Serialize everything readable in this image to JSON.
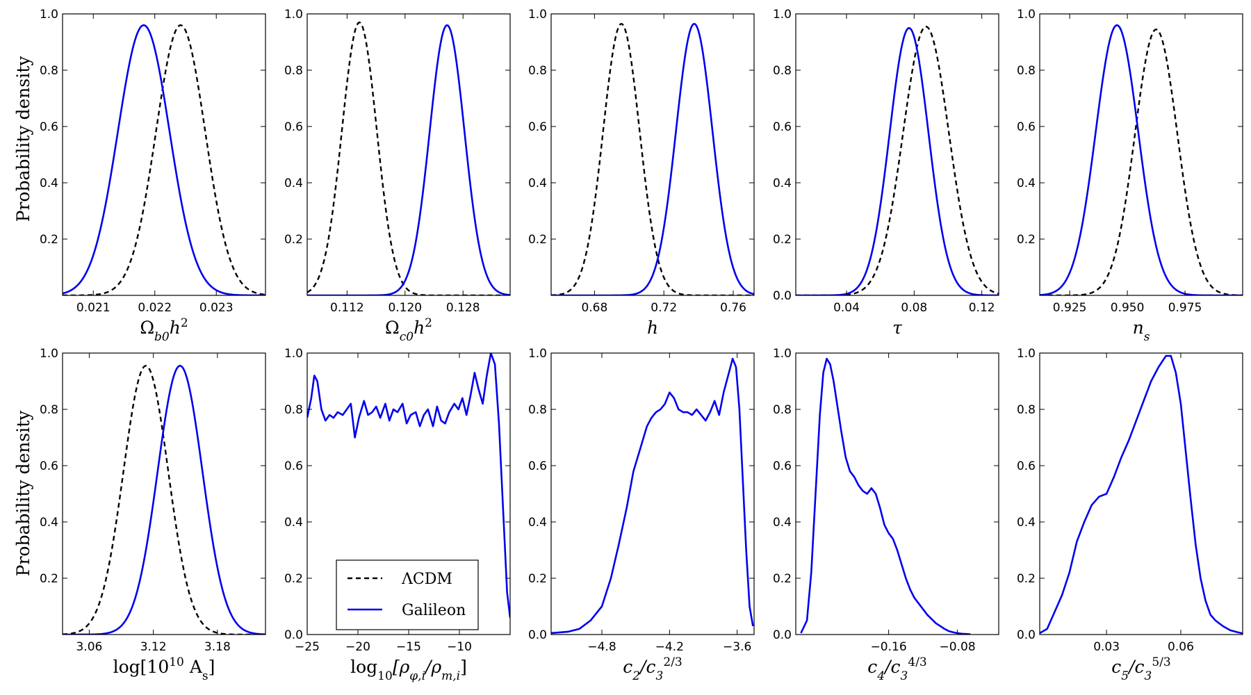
{
  "figure": {
    "ylabel": "Probability density",
    "legend": {
      "position": "lower-center of panel 7",
      "entries": [
        {
          "label": "ΛCDM",
          "style": "dashed",
          "color": "#000000"
        },
        {
          "label": "Galileon",
          "style": "solid",
          "color": "#0000ee"
        }
      ]
    },
    "colors": {
      "lcdm": "#000000",
      "galileon": "#0000ee"
    }
  },
  "chart_data": [
    {
      "type": "line",
      "id": "omega_b",
      "xlabel": "Ωb0h²",
      "xlim": [
        0.0205,
        0.0238
      ],
      "ylim": [
        0,
        1.0
      ],
      "xticks": [
        {
          "v": 0.021,
          "label": "0.021"
        },
        {
          "v": 0.022,
          "label": "0.022"
        },
        {
          "v": 0.023,
          "label": "0.023"
        }
      ],
      "yticks": [
        {
          "v": 0.2,
          "label": "0.2"
        },
        {
          "v": 0.4,
          "label": "0.4"
        },
        {
          "v": 0.6,
          "label": "0.6"
        },
        {
          "v": 0.8,
          "label": "0.8"
        },
        {
          "v": 1.0,
          "label": "1.0"
        }
      ],
      "series": [
        {
          "name": "ΛCDM",
          "style": "dashed",
          "mu": 0.02242,
          "sig": 0.0004,
          "amp": 0.96
        },
        {
          "name": "Galileon",
          "style": "solid",
          "mu": 0.02182,
          "sig": 0.00042,
          "amp": 0.96
        }
      ]
    },
    {
      "type": "line",
      "id": "omega_c",
      "xlabel": "Ωc0h²",
      "xlim": [
        0.1065,
        0.1345
      ],
      "ylim": [
        0,
        1.0
      ],
      "xticks": [
        {
          "v": 0.112,
          "label": "0.112"
        },
        {
          "v": 0.12,
          "label": "0.120"
        },
        {
          "v": 0.128,
          "label": "0.128"
        }
      ],
      "yticks": [
        {
          "v": 0.2,
          "label": "0.2"
        },
        {
          "v": 0.4,
          "label": "0.4"
        },
        {
          "v": 0.6,
          "label": "0.6"
        },
        {
          "v": 0.8,
          "label": "0.8"
        },
        {
          "v": 1.0,
          "label": "1.0"
        }
      ],
      "series": [
        {
          "name": "ΛCDM",
          "style": "dashed",
          "mu": 0.1137,
          "sig": 0.0024,
          "amp": 0.97
        },
        {
          "name": "Galileon",
          "style": "solid",
          "mu": 0.1258,
          "sig": 0.0024,
          "amp": 0.96
        }
      ]
    },
    {
      "type": "line",
      "id": "h",
      "xlabel": "h",
      "xlim": [
        0.655,
        0.772
      ],
      "ylim": [
        0,
        1.0
      ],
      "xticks": [
        {
          "v": 0.68,
          "label": "0.68"
        },
        {
          "v": 0.72,
          "label": "0.72"
        },
        {
          "v": 0.76,
          "label": "0.76"
        }
      ],
      "yticks": [
        {
          "v": 0.2,
          "label": "0.2"
        },
        {
          "v": 0.4,
          "label": "0.4"
        },
        {
          "v": 0.6,
          "label": "0.6"
        },
        {
          "v": 0.8,
          "label": "0.8"
        },
        {
          "v": 1.0,
          "label": "1.0"
        }
      ],
      "series": [
        {
          "name": "ΛCDM",
          "style": "dashed",
          "mu": 0.6955,
          "sig": 0.0105,
          "amp": 0.965
        },
        {
          "name": "Galileon",
          "style": "solid",
          "mu": 0.7375,
          "sig": 0.0105,
          "amp": 0.965
        }
      ]
    },
    {
      "type": "line",
      "id": "tau",
      "xlabel": "τ",
      "xlim": [
        0.01,
        0.13
      ],
      "ylim": [
        0,
        1.0
      ],
      "xticks": [
        {
          "v": 0.04,
          "label": "0.04"
        },
        {
          "v": 0.08,
          "label": "0.08"
        },
        {
          "v": 0.12,
          "label": "0.12"
        }
      ],
      "yticks": [
        {
          "v": 0.0,
          "label": "0.0"
        },
        {
          "v": 0.2,
          "label": "0.2"
        },
        {
          "v": 0.4,
          "label": "0.4"
        },
        {
          "v": 0.6,
          "label": "0.6"
        },
        {
          "v": 0.8,
          "label": "0.8"
        },
        {
          "v": 1.0,
          "label": "1.0"
        }
      ],
      "series": [
        {
          "name": "ΛCDM",
          "style": "dashed",
          "mu": 0.087,
          "sig": 0.0135,
          "amp": 0.955
        },
        {
          "name": "Galileon",
          "style": "solid",
          "mu": 0.077,
          "sig": 0.0115,
          "amp": 0.95
        }
      ]
    },
    {
      "type": "line",
      "id": "ns",
      "xlabel": "ns",
      "xlim": [
        0.912,
        1.0
      ],
      "ylim": [
        0,
        1.0
      ],
      "xticks": [
        {
          "v": 0.925,
          "label": "0.925"
        },
        {
          "v": 0.95,
          "label": "0.950"
        },
        {
          "v": 0.975,
          "label": "0.975"
        }
      ],
      "yticks": [
        {
          "v": 0.2,
          "label": "0.2"
        },
        {
          "v": 0.4,
          "label": "0.4"
        },
        {
          "v": 0.6,
          "label": "0.6"
        },
        {
          "v": 0.8,
          "label": "0.8"
        },
        {
          "v": 1.0,
          "label": "1.0"
        }
      ],
      "series": [
        {
          "name": "ΛCDM",
          "style": "dashed",
          "mu": 0.9625,
          "sig": 0.0092,
          "amp": 0.945
        },
        {
          "name": "Galileon",
          "style": "solid",
          "mu": 0.9455,
          "sig": 0.0092,
          "amp": 0.96
        }
      ]
    },
    {
      "type": "line",
      "id": "As",
      "xlabel": "log[10¹⁰ As]",
      "xlim": [
        3.035,
        3.225
      ],
      "ylim": [
        0,
        1.0
      ],
      "xticks": [
        {
          "v": 3.06,
          "label": "3.06"
        },
        {
          "v": 3.12,
          "label": "3.12"
        },
        {
          "v": 3.18,
          "label": "3.18"
        }
      ],
      "yticks": [
        {
          "v": 0.2,
          "label": "0.2"
        },
        {
          "v": 0.4,
          "label": "0.4"
        },
        {
          "v": 0.6,
          "label": "0.6"
        },
        {
          "v": 0.8,
          "label": "0.8"
        },
        {
          "v": 1.0,
          "label": "1.0"
        }
      ],
      "series": [
        {
          "name": "ΛCDM",
          "style": "dashed",
          "mu": 3.113,
          "sig": 0.021,
          "amp": 0.955
        },
        {
          "name": "Galileon",
          "style": "solid",
          "mu": 3.145,
          "sig": 0.021,
          "amp": 0.955
        }
      ]
    },
    {
      "type": "line",
      "id": "rho",
      "xlabel": "log10[ρφ,i/ρm,i]",
      "xlim": [
        -25,
        -5
      ],
      "ylim": [
        0,
        1.0
      ],
      "xticks": [
        {
          "v": -25,
          "label": "−25"
        },
        {
          "v": -20,
          "label": "−20"
        },
        {
          "v": -15,
          "label": "−15"
        },
        {
          "v": -10,
          "label": "−10"
        }
      ],
      "yticks": [
        {
          "v": 0.0,
          "label": "0.0"
        },
        {
          "v": 0.2,
          "label": "0.2"
        },
        {
          "v": 0.4,
          "label": "0.4"
        },
        {
          "v": 0.6,
          "label": "0.6"
        },
        {
          "v": 0.8,
          "label": "0.8"
        },
        {
          "v": 1.0,
          "label": "1.0"
        }
      ],
      "series": [
        {
          "name": "Galileon",
          "style": "solid",
          "x": [
            -25,
            -24.6,
            -24.3,
            -24.0,
            -23.6,
            -23.2,
            -22.8,
            -22.4,
            -22.0,
            -21.5,
            -21.1,
            -20.7,
            -20.3,
            -19.9,
            -19.4,
            -19.0,
            -18.6,
            -18.2,
            -17.8,
            -17.3,
            -16.9,
            -16.5,
            -16.1,
            -15.6,
            -15.2,
            -14.8,
            -14.3,
            -13.9,
            -13.5,
            -13.1,
            -12.6,
            -12.2,
            -11.8,
            -11.4,
            -11.0,
            -10.5,
            -10.1,
            -9.7,
            -9.3,
            -8.9,
            -8.5,
            -8.1,
            -7.7,
            -7.3,
            -6.9,
            -6.5,
            -6.1,
            -5.7,
            -5.3,
            -5.0
          ],
          "y": [
            0.77,
            0.84,
            0.92,
            0.9,
            0.8,
            0.76,
            0.78,
            0.77,
            0.79,
            0.78,
            0.8,
            0.82,
            0.7,
            0.77,
            0.83,
            0.78,
            0.79,
            0.81,
            0.77,
            0.82,
            0.76,
            0.8,
            0.79,
            0.82,
            0.75,
            0.78,
            0.79,
            0.74,
            0.78,
            0.8,
            0.74,
            0.81,
            0.76,
            0.75,
            0.79,
            0.82,
            0.8,
            0.84,
            0.78,
            0.85,
            0.93,
            0.87,
            0.82,
            0.92,
            1.0,
            0.96,
            0.75,
            0.45,
            0.15,
            0.06
          ]
        }
      ]
    },
    {
      "type": "line",
      "id": "c2",
      "xlabel": "c2/c3^(2/3)",
      "xlim": [
        -5.25,
        -3.45
      ],
      "ylim": [
        0,
        1.0
      ],
      "xticks": [
        {
          "v": -4.8,
          "label": "−4.8"
        },
        {
          "v": -4.2,
          "label": "−4.2"
        },
        {
          "v": -3.6,
          "label": "−3.6"
        }
      ],
      "yticks": [
        {
          "v": 0.0,
          "label": "0.0"
        },
        {
          "v": 0.2,
          "label": "0.2"
        },
        {
          "v": 0.4,
          "label": "0.4"
        },
        {
          "v": 0.6,
          "label": "0.6"
        },
        {
          "v": 0.8,
          "label": "0.8"
        },
        {
          "v": 1.0,
          "label": "1.0"
        }
      ],
      "series": [
        {
          "name": "Galileon",
          "style": "solid",
          "x": [
            -5.25,
            -5.1,
            -5.0,
            -4.9,
            -4.8,
            -4.72,
            -4.65,
            -4.58,
            -4.52,
            -4.46,
            -4.4,
            -4.36,
            -4.32,
            -4.28,
            -4.24,
            -4.2,
            -4.16,
            -4.12,
            -4.08,
            -4.04,
            -4.0,
            -3.96,
            -3.92,
            -3.88,
            -3.84,
            -3.8,
            -3.76,
            -3.72,
            -3.68,
            -3.64,
            -3.61,
            -3.58,
            -3.55,
            -3.52,
            -3.49,
            -3.46
          ],
          "y": [
            0.005,
            0.01,
            0.02,
            0.05,
            0.1,
            0.2,
            0.32,
            0.45,
            0.58,
            0.66,
            0.74,
            0.77,
            0.79,
            0.8,
            0.82,
            0.86,
            0.84,
            0.8,
            0.79,
            0.79,
            0.78,
            0.8,
            0.78,
            0.76,
            0.79,
            0.83,
            0.78,
            0.86,
            0.92,
            0.98,
            0.95,
            0.8,
            0.55,
            0.3,
            0.1,
            0.03
          ]
        }
      ]
    },
    {
      "type": "line",
      "id": "c4",
      "xlabel": "c4/c3^(4/3)",
      "xlim": [
        -0.268,
        -0.032
      ],
      "ylim": [
        0,
        1.0
      ],
      "xticks": [
        {
          "v": -0.16,
          "label": "−0.16"
        },
        {
          "v": -0.08,
          "label": "−0.08"
        }
      ],
      "yticks": [
        {
          "v": 0.0,
          "label": "0.0"
        },
        {
          "v": 0.2,
          "label": "0.2"
        },
        {
          "v": 0.4,
          "label": "0.4"
        },
        {
          "v": 0.6,
          "label": "0.6"
        },
        {
          "v": 0.8,
          "label": "0.8"
        },
        {
          "v": 1.0,
          "label": "1.0"
        }
      ],
      "series": [
        {
          "name": "Galileon",
          "style": "solid",
          "x": [
            -0.262,
            -0.255,
            -0.25,
            -0.245,
            -0.24,
            -0.236,
            -0.232,
            -0.228,
            -0.224,
            -0.22,
            -0.215,
            -0.21,
            -0.205,
            -0.2,
            -0.195,
            -0.19,
            -0.185,
            -0.18,
            -0.175,
            -0.17,
            -0.165,
            -0.16,
            -0.155,
            -0.15,
            -0.145,
            -0.14,
            -0.135,
            -0.13,
            -0.125,
            -0.12,
            -0.115,
            -0.11,
            -0.105,
            -0.1,
            -0.095,
            -0.09,
            -0.085,
            -0.08,
            -0.075,
            -0.07,
            -0.065
          ],
          "y": [
            0.005,
            0.05,
            0.22,
            0.5,
            0.78,
            0.93,
            0.98,
            0.96,
            0.9,
            0.82,
            0.72,
            0.63,
            0.58,
            0.56,
            0.53,
            0.51,
            0.5,
            0.52,
            0.5,
            0.45,
            0.39,
            0.36,
            0.34,
            0.3,
            0.25,
            0.2,
            0.16,
            0.13,
            0.11,
            0.09,
            0.07,
            0.055,
            0.04,
            0.03,
            0.02,
            0.012,
            0.008,
            0.005,
            0.003,
            0.002,
            0.001
          ]
        }
      ]
    },
    {
      "type": "line",
      "id": "c5",
      "xlabel": "c5/c3^(5/3)",
      "xlim": [
        0.003,
        0.085
      ],
      "ylim": [
        0,
        1.0
      ],
      "xticks": [
        {
          "v": 0.03,
          "label": "0.03"
        },
        {
          "v": 0.06,
          "label": "0.06"
        }
      ],
      "yticks": [
        {
          "v": 0.0,
          "label": "0.0"
        },
        {
          "v": 0.2,
          "label": "0.2"
        },
        {
          "v": 0.4,
          "label": "0.4"
        },
        {
          "v": 0.6,
          "label": "0.6"
        },
        {
          "v": 0.8,
          "label": "0.8"
        },
        {
          "v": 1.0,
          "label": "1.0"
        }
      ],
      "series": [
        {
          "name": "Galileon",
          "style": "solid",
          "x": [
            0.003,
            0.006,
            0.009,
            0.012,
            0.015,
            0.018,
            0.021,
            0.024,
            0.027,
            0.03,
            0.033,
            0.036,
            0.039,
            0.042,
            0.045,
            0.048,
            0.051,
            0.054,
            0.056,
            0.058,
            0.06,
            0.062,
            0.064,
            0.066,
            0.068,
            0.07,
            0.072,
            0.074,
            0.077,
            0.08,
            0.083,
            0.085
          ],
          "y": [
            0.005,
            0.02,
            0.08,
            0.14,
            0.22,
            0.33,
            0.4,
            0.46,
            0.49,
            0.5,
            0.56,
            0.63,
            0.69,
            0.76,
            0.83,
            0.9,
            0.95,
            0.99,
            0.99,
            0.93,
            0.82,
            0.65,
            0.48,
            0.32,
            0.2,
            0.12,
            0.07,
            0.05,
            0.03,
            0.015,
            0.008,
            0.004
          ]
        }
      ]
    }
  ]
}
